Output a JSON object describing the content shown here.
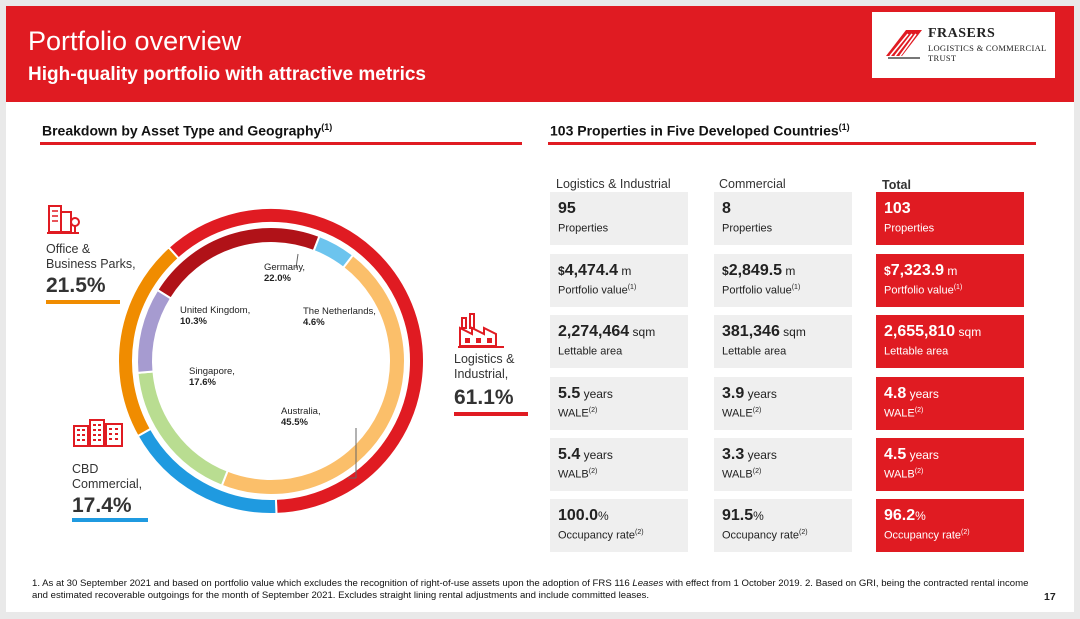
{
  "header": {
    "title": "Portfolio overview",
    "subtitle": "High-quality portfolio with attractive metrics",
    "logo_line1": "FRASERS",
    "logo_line2": "LOGISTICS & COMMERCIAL",
    "logo_line3": "TRUST"
  },
  "left_section": {
    "heading": "Breakdown by Asset Type and Geography",
    "note": "(1)"
  },
  "right_section": {
    "heading": "103 Properties in Five Developed Countries",
    "note": "(1)"
  },
  "asset_types": [
    {
      "label_line1": "Office &",
      "label_line2": "Business Parks,",
      "pct": "21.5%",
      "color": "#f08c00"
    },
    {
      "label_line1": "Logistics &",
      "label_line2": "Industrial,",
      "pct": "61.1%",
      "color": "#e01b22"
    },
    {
      "label_line1": "CBD",
      "label_line2": "Commercial,",
      "pct": "17.4%",
      "color": "#1f9ae0"
    }
  ],
  "chart_data": {
    "type": "pie",
    "title": "Breakdown by Asset Type and Geography",
    "outer_ring": {
      "name": "Asset Type",
      "slices": [
        {
          "label": "Logistics & Industrial",
          "value": 61.1,
          "color": "#e01b22"
        },
        {
          "label": "CBD Commercial",
          "value": 17.4,
          "color": "#1f9ae0"
        },
        {
          "label": "Office & Business Parks",
          "value": 21.5,
          "color": "#f08c00"
        }
      ]
    },
    "inner_ring": {
      "name": "Geography",
      "slices": [
        {
          "label": "Germany,",
          "value": 22.0,
          "value_label": "22.0%",
          "color": "#b01218"
        },
        {
          "label": "The Netherlands,",
          "value": 4.6,
          "value_label": "4.6%",
          "color": "#6cc4ee"
        },
        {
          "label": "Australia,",
          "value": 45.5,
          "value_label": "45.5%",
          "color": "#fbbf6a"
        },
        {
          "label": "Singapore,",
          "value": 17.6,
          "value_label": "17.6%",
          "color": "#b9dd91"
        },
        {
          "label": "United Kingdom,",
          "value": 10.3,
          "value_label": "10.3%",
          "color": "#a69bd0"
        }
      ]
    }
  },
  "table": {
    "headers": [
      "Logistics & Industrial",
      "Commercial",
      "Total"
    ],
    "rows": [
      {
        "cells": [
          {
            "prefix": "",
            "value": "95",
            "unit": "",
            "label": "Properties",
            "sup": ""
          },
          {
            "prefix": "",
            "value": "8",
            "unit": "",
            "label": "Properties",
            "sup": ""
          },
          {
            "prefix": "",
            "value": "103",
            "unit": "",
            "label": "Properties",
            "sup": ""
          }
        ]
      },
      {
        "cells": [
          {
            "prefix": "$",
            "value": "4,474.4",
            "unit": " m",
            "label": "Portfolio value",
            "sup": "(1)"
          },
          {
            "prefix": "$",
            "value": "2,849.5",
            "unit": " m",
            "label": "Portfolio value",
            "sup": "(1)"
          },
          {
            "prefix": "$",
            "value": "7,323.9",
            "unit": " m",
            "label": "Portfolio value",
            "sup": "(1)"
          }
        ]
      },
      {
        "cells": [
          {
            "prefix": "",
            "value": "2,274,464",
            "unit": " sqm",
            "label": "Lettable area",
            "sup": ""
          },
          {
            "prefix": "",
            "value": "381,346",
            "unit": " sqm",
            "label": "Lettable area",
            "sup": ""
          },
          {
            "prefix": "",
            "value": "2,655,810",
            "unit": " sqm",
            "label": "Lettable area",
            "sup": ""
          }
        ]
      },
      {
        "cells": [
          {
            "prefix": "",
            "value": "5.5",
            "unit": " years",
            "label": "WALE",
            "sup": "(2)"
          },
          {
            "prefix": "",
            "value": "3.9",
            "unit": " years",
            "label": "WALE",
            "sup": "(2)"
          },
          {
            "prefix": "",
            "value": "4.8",
            "unit": " years",
            "label": "WALE",
            "sup": "(2)"
          }
        ]
      },
      {
        "cells": [
          {
            "prefix": "",
            "value": "5.4",
            "unit": " years",
            "label": "WALB",
            "sup": "(2)"
          },
          {
            "prefix": "",
            "value": "3.3",
            "unit": " years",
            "label": "WALB",
            "sup": "(2)"
          },
          {
            "prefix": "",
            "value": "4.5",
            "unit": " years",
            "label": "WALB",
            "sup": "(2)"
          }
        ]
      },
      {
        "cells": [
          {
            "prefix": "",
            "value": "100.0",
            "unit": "%",
            "label": "Occupancy rate",
            "sup": "(2)"
          },
          {
            "prefix": "",
            "value": "91.5",
            "unit": "%",
            "label": "Occupancy rate",
            "sup": "(2)"
          },
          {
            "prefix": "",
            "value": "96.2",
            "unit": "%",
            "label": "Occupancy rate",
            "sup": "(2)"
          }
        ]
      }
    ]
  },
  "footnote": {
    "part1": "1. As at 30 September 2021 and based on portfolio value which excludes the recognition of right-of-use assets upon the adoption of FRS 116 ",
    "italic": "Leases",
    "part2": " with effect from 1 October 2019.   2. Based on GRI, being the contracted rental income and estimated recoverable outgoings for the month of September 2021. Excludes straight lining rental adjustments and include committed leases."
  },
  "page_number": "17"
}
